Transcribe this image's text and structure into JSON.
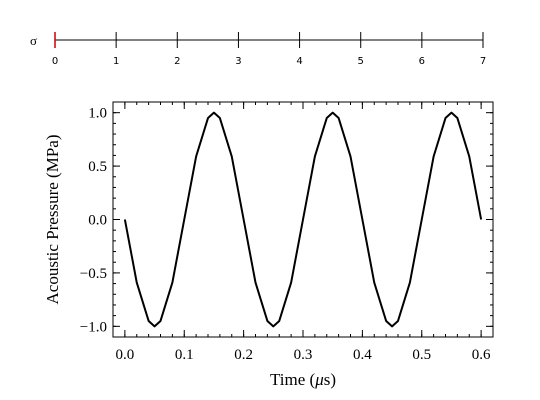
{
  "sigma_scale": {
    "symbol": "σ",
    "min": 0,
    "max": 7,
    "ticks": [
      "0",
      "1",
      "2",
      "3",
      "4",
      "5",
      "6",
      "7"
    ],
    "marker_value": 0,
    "marker_color": "#cc0000"
  },
  "chart_data": {
    "type": "line",
    "title": "",
    "xlabel_prefix": "Time (",
    "xlabel_unit": "μ",
    "xlabel_suffix": "s)",
    "ylabel": "Acoustic Pressure (MPa)",
    "xlim": [
      -0.02,
      0.62
    ],
    "ylim": [
      -1.1,
      1.1
    ],
    "xticks": [
      0.0,
      0.1,
      0.2,
      0.3,
      0.4,
      0.5,
      0.6
    ],
    "xtick_labels": [
      "0.0",
      "0.1",
      "0.2",
      "0.3",
      "0.4",
      "0.5",
      "0.6"
    ],
    "yticks": [
      -1.0,
      -0.5,
      0.0,
      0.5,
      1.0
    ],
    "ytick_labels": [
      "−1.0",
      "−0.5",
      "0.0",
      "0.5",
      "1.0"
    ],
    "grid": false,
    "legend": "none",
    "line_color": "#000000",
    "series": [
      {
        "x": [
          0.0,
          0.02,
          0.04,
          0.05,
          0.06,
          0.08,
          0.1,
          0.12,
          0.14,
          0.15,
          0.16,
          0.18,
          0.2,
          0.22,
          0.24,
          0.25,
          0.26,
          0.28,
          0.3,
          0.32,
          0.34,
          0.35,
          0.36,
          0.38,
          0.4,
          0.42,
          0.44,
          0.45,
          0.46,
          0.48,
          0.5,
          0.52,
          0.54,
          0.55,
          0.56,
          0.58,
          0.6
        ],
        "y": [
          0.0,
          -0.59,
          -0.95,
          -1.0,
          -0.95,
          -0.59,
          0.0,
          0.59,
          0.95,
          1.0,
          0.95,
          0.59,
          0.0,
          -0.59,
          -0.95,
          -1.0,
          -0.95,
          -0.59,
          0.0,
          0.59,
          0.95,
          1.0,
          0.95,
          0.59,
          0.0,
          -0.59,
          -0.95,
          -1.0,
          -0.95,
          -0.59,
          0.0,
          0.59,
          0.95,
          1.0,
          0.95,
          0.59,
          0.0
        ]
      }
    ]
  }
}
